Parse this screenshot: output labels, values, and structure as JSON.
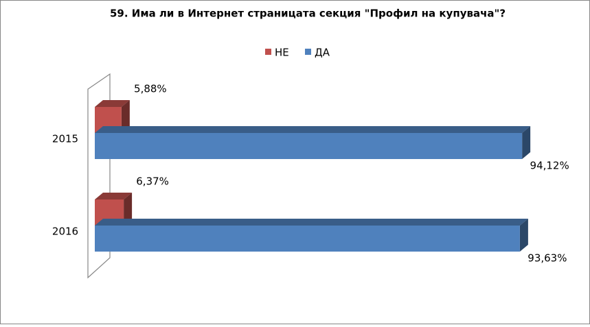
{
  "chart_data": {
    "type": "bar3d-horizontal",
    "title": "59. Има ли в Интернет страницата секция \"Профил на купувача\"?",
    "categories": [
      "2015",
      "2016"
    ],
    "series": [
      {
        "name": "НЕ",
        "color": "#c0504d",
        "values": [
          5.88,
          6.37
        ],
        "value_labels": [
          "5,88%",
          "6,37%"
        ]
      },
      {
        "name": "ДА",
        "color": "#4f81bd",
        "values": [
          94.12,
          93.63
        ],
        "value_labels": [
          "94,12%",
          "93,63%"
        ]
      }
    ],
    "legend": "top"
  }
}
